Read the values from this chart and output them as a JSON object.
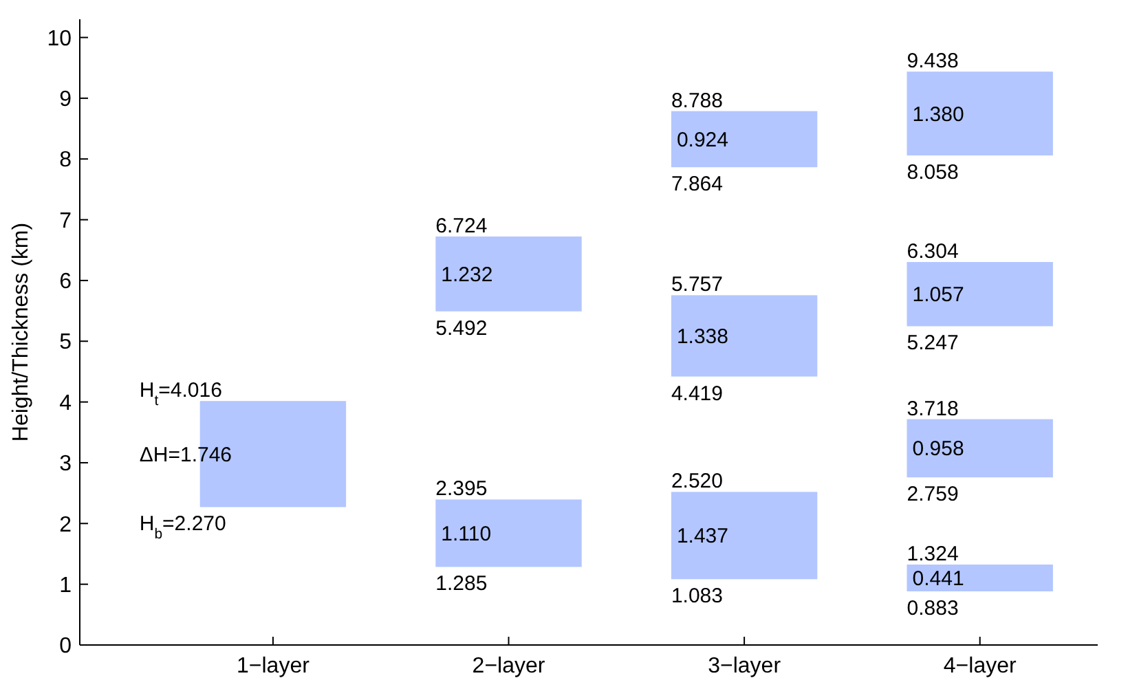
{
  "chart_data": {
    "type": "bar",
    "ylabel": "Height/Thickness (km)",
    "categories": [
      "1−layer",
      "2−layer",
      "3−layer",
      "4−layer"
    ],
    "ylim": [
      0,
      10.3
    ],
    "yticks": [
      0,
      1,
      2,
      3,
      4,
      5,
      6,
      7,
      8,
      9,
      10
    ],
    "grid": false,
    "series": [
      {
        "color": "#b3c6ff",
        "base": [
          2.27,
          1.285,
          1.083,
          0.883
        ],
        "values": [
          1.746,
          1.11,
          1.437,
          0.441
        ],
        "value_labels": [
          "ΔH=1.746",
          "1.110",
          "1.437",
          "0.441"
        ]
      },
      {
        "color": "#b3c6ff",
        "base": [
          null,
          5.492,
          4.419,
          2.759
        ],
        "values": [
          null,
          1.232,
          1.338,
          0.958
        ],
        "value_labels": [
          null,
          "1.232",
          "1.338",
          "0.958"
        ]
      },
      {
        "color": "#b3c6ff",
        "base": [
          null,
          null,
          7.864,
          5.247
        ],
        "values": [
          null,
          null,
          0.924,
          1.057
        ],
        "value_labels": [
          null,
          null,
          "0.924",
          "1.057"
        ]
      },
      {
        "color": "#b3c6ff",
        "base": [
          null,
          null,
          null,
          8.058
        ],
        "values": [
          null,
          null,
          null,
          1.38
        ],
        "value_labels": [
          null,
          null,
          null,
          "1.380"
        ]
      }
    ],
    "annotations": [
      {
        "text": "H$_{t}$=4.016",
        "x": "1−layer",
        "y": 4.016
      },
      {
        "text": "H$_{b}$=2.270",
        "x": "1−layer",
        "y": 2.27
      },
      {
        "text": "2.395",
        "x": "2−layer",
        "y": 2.395
      },
      {
        "text": "1.285",
        "x": "2−layer",
        "y": 1.285
      },
      {
        "text": "6.724",
        "x": "2−layer",
        "y": 6.724
      },
      {
        "text": "5.492",
        "x": "2−layer",
        "y": 5.492
      },
      {
        "text": "2.520",
        "x": "3−layer",
        "y": 2.52
      },
      {
        "text": "1.083",
        "x": "3−layer",
        "y": 1.083
      },
      {
        "text": "5.757",
        "x": "3−layer",
        "y": 5.757
      },
      {
        "text": "4.419",
        "x": "3−layer",
        "y": 4.419
      },
      {
        "text": "8.788",
        "x": "3−layer",
        "y": 8.788
      },
      {
        "text": "7.864",
        "x": "3−layer",
        "y": 7.864
      },
      {
        "text": "1.324",
        "x": "4−layer",
        "y": 1.324
      },
      {
        "text": "0.883",
        "x": "4−layer",
        "y": 0.883
      },
      {
        "text": "3.718",
        "x": "4−layer",
        "y": 3.718
      },
      {
        "text": "2.759",
        "x": "4−layer",
        "y": 2.759
      },
      {
        "text": "6.304",
        "x": "4−layer",
        "y": 6.304
      },
      {
        "text": "5.247",
        "x": "4−layer",
        "y": 5.247
      },
      {
        "text": "9.438",
        "x": "4−layer",
        "y": 9.438
      },
      {
        "text": "8.058",
        "x": "4−layer",
        "y": 8.058
      }
    ]
  }
}
